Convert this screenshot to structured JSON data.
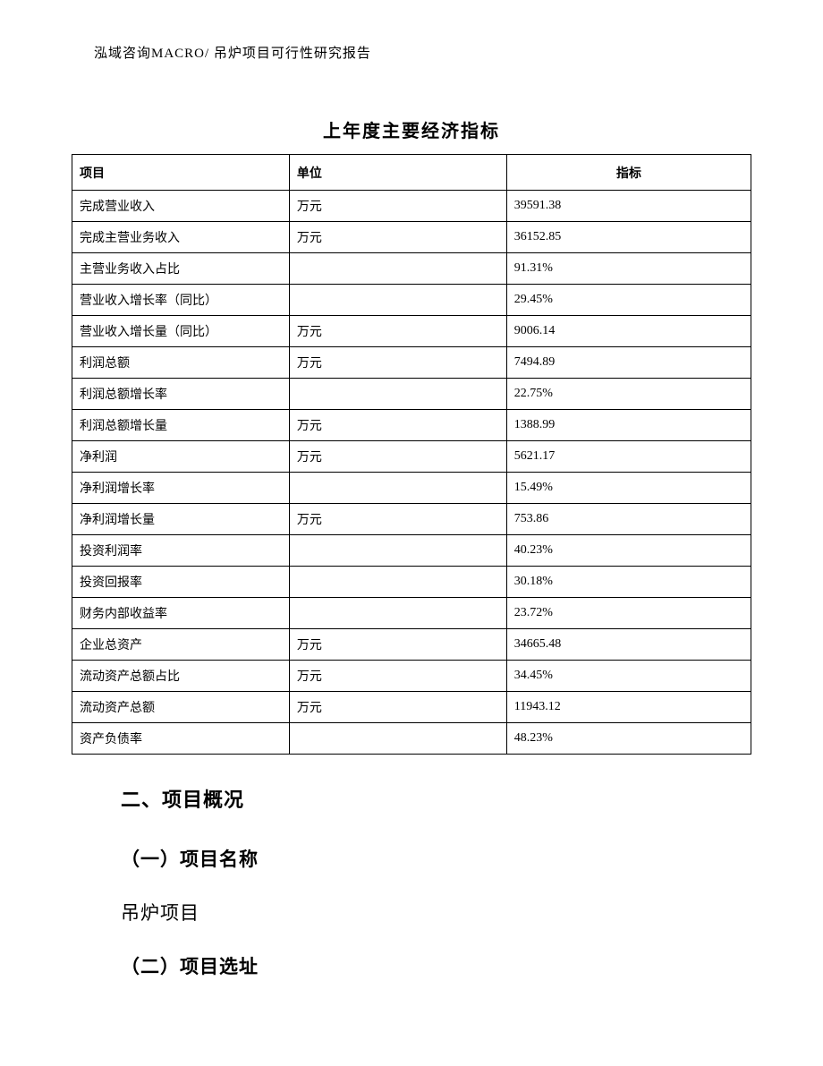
{
  "header": {
    "text": "泓域咨询MACRO/    吊炉项目可行性研究报告"
  },
  "table": {
    "title": "上年度主要经济指标",
    "columns": {
      "item": "项目",
      "unit": "单位",
      "value": "指标"
    },
    "rows": [
      {
        "item": "完成营业收入",
        "unit": "万元",
        "value": "39591.38"
      },
      {
        "item": "完成主营业务收入",
        "unit": "万元",
        "value": "36152.85"
      },
      {
        "item": "主营业务收入占比",
        "unit": "",
        "value": "91.31%"
      },
      {
        "item": "营业收入增长率（同比）",
        "unit": "",
        "value": "29.45%"
      },
      {
        "item": "营业收入增长量（同比）",
        "unit": "万元",
        "value": "9006.14"
      },
      {
        "item": "利润总额",
        "unit": "万元",
        "value": "7494.89"
      },
      {
        "item": "利润总额增长率",
        "unit": "",
        "value": "22.75%"
      },
      {
        "item": "利润总额增长量",
        "unit": "万元",
        "value": "1388.99"
      },
      {
        "item": "净利润",
        "unit": "万元",
        "value": "5621.17"
      },
      {
        "item": "净利润增长率",
        "unit": "",
        "value": "15.49%"
      },
      {
        "item": "净利润增长量",
        "unit": "万元",
        "value": "753.86"
      },
      {
        "item": "投资利润率",
        "unit": "",
        "value": "40.23%"
      },
      {
        "item": "投资回报率",
        "unit": "",
        "value": "30.18%"
      },
      {
        "item": "财务内部收益率",
        "unit": "",
        "value": "23.72%"
      },
      {
        "item": "企业总资产",
        "unit": "万元",
        "value": "34665.48"
      },
      {
        "item": "流动资产总额占比",
        "unit": "万元",
        "value": "34.45%"
      },
      {
        "item": "流动资产总额",
        "unit": "万元",
        "value": "11943.12"
      },
      {
        "item": "资产负债率",
        "unit": "",
        "value": "48.23%"
      }
    ]
  },
  "body": {
    "section2_heading": "二、项目概况",
    "sub1_heading": "（一）项目名称",
    "sub1_text": "吊炉项目",
    "sub2_heading": "（二）项目选址"
  }
}
